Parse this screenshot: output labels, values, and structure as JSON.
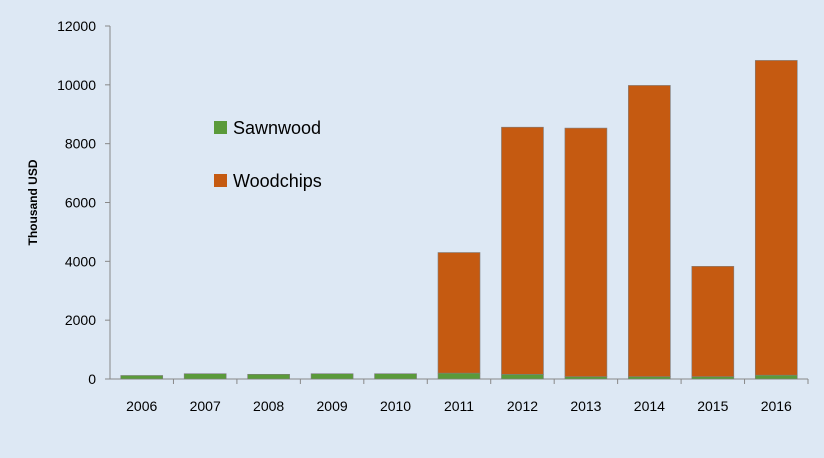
{
  "chart_data": {
    "type": "bar",
    "stacked": true,
    "title": "",
    "xlabel": "",
    "ylabel": "Thousand USD",
    "ylim": [
      0,
      12000
    ],
    "yticks": [
      0,
      2000,
      4000,
      6000,
      8000,
      10000,
      12000
    ],
    "grid": false,
    "legend_position": "upper-left inside plot",
    "categories": [
      "2006",
      "2007",
      "2008",
      "2009",
      "2010",
      "2011",
      "2012",
      "2013",
      "2014",
      "2015",
      "2016"
    ],
    "series": [
      {
        "name": "Sawnwood",
        "color": "#5a9a3a",
        "values": [
          120,
          180,
          160,
          180,
          180,
          200,
          160,
          80,
          80,
          80,
          130
        ]
      },
      {
        "name": "Woodchips",
        "color": "#c55a11",
        "values": [
          0,
          0,
          0,
          0,
          0,
          4100,
          8400,
          8450,
          9900,
          3750,
          10700
        ]
      }
    ]
  }
}
